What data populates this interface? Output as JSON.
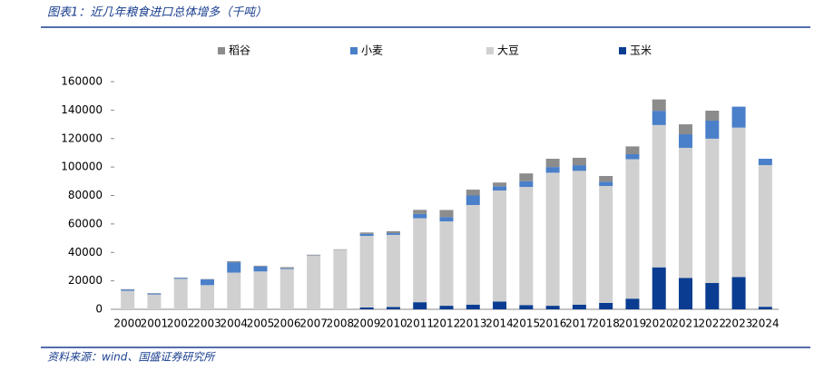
{
  "chart_data": {
    "type": "stacked_bar",
    "title": "图表1：近几年粮食进口总体增多（千吨）",
    "source": "资料来源：wind、国盛证券研究所",
    "categories": [
      "2000",
      "2001",
      "2002",
      "2003",
      "2004",
      "2005",
      "2006",
      "2007",
      "2008",
      "2009",
      "2010",
      "2011",
      "2012",
      "2013",
      "2014",
      "2015",
      "2016",
      "2017",
      "2018",
      "2019",
      "2020",
      "2021",
      "2022",
      "2023",
      "2024"
    ],
    "series": [
      {
        "name": "稻谷",
        "color": "#8c8c8c",
        "values": [
          250,
          270,
          240,
          260,
          760,
          520,
          730,
          490,
          330,
          1000,
          1400,
          2900,
          5000,
          4100,
          2600,
          5500,
          5800,
          5200,
          4000,
          5500,
          8000,
          7000,
          7000,
          0,
          0
        ]
      },
      {
        "name": "小麦",
        "color": "#4a7fc9",
        "values": [
          900,
          700,
          600,
          4000,
          7260,
          3540,
          600,
          100,
          40,
          1400,
          1200,
          3000,
          3000,
          6700,
          3000,
          4000,
          4000,
          4000,
          3000,
          3500,
          10000,
          9500,
          12700,
          14700,
          4500
        ]
      },
      {
        "name": "大豆",
        "color": "#d0d0d0",
        "values": [
          13000,
          10400,
          21400,
          17000,
          25800,
          26600,
          28300,
          37800,
          41800,
          50300,
          50700,
          59000,
          59300,
          70000,
          78000,
          83000,
          93500,
          94000,
          82200,
          98000,
          100000,
          91500,
          101400,
          105000,
          99500
        ]
      },
      {
        "name": "玉米",
        "color": "#0a3d91",
        "values": [
          0,
          0,
          0,
          0,
          0,
          0,
          0,
          0,
          0,
          1300,
          1600,
          5000,
          2500,
          3300,
          5500,
          3000,
          2500,
          3300,
          4500,
          7500,
          29500,
          22000,
          18500,
          22700,
          1800
        ]
      }
    ],
    "ylim": [
      0,
      160000
    ],
    "yticks": [
      0,
      20000,
      40000,
      60000,
      80000,
      100000,
      120000,
      140000,
      160000
    ]
  }
}
